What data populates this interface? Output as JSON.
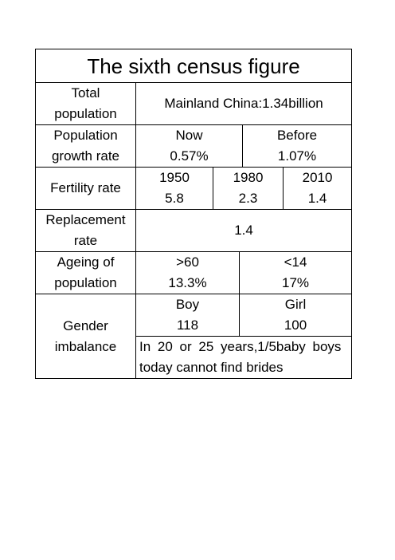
{
  "title": "The sixth census figure",
  "total_population": {
    "label": [
      "Total",
      "population"
    ],
    "value": "Mainland China:1.34billion"
  },
  "growth_rate": {
    "label": [
      "Population",
      "growth rate"
    ],
    "now": {
      "label": "Now",
      "value": "0.57%"
    },
    "before": {
      "label": "Before",
      "value": "1.07%"
    }
  },
  "fertility_rate": {
    "label": "Fertility rate",
    "entries": [
      {
        "year": "1950",
        "value": "5.8"
      },
      {
        "year": "1980",
        "value": "2.3"
      },
      {
        "year": "2010",
        "value": "1.4"
      }
    ]
  },
  "replacement_rate": {
    "label": [
      "Replacement",
      "rate"
    ],
    "value": "1.4"
  },
  "ageing": {
    "label": [
      "Ageing of",
      "population"
    ],
    "over60": {
      "label": ">60",
      "value": "13.3%"
    },
    "under14": {
      "label": "<14",
      "value": "17%"
    }
  },
  "gender": {
    "label": [
      "Gender",
      "imbalance"
    ],
    "boy": {
      "label": "Boy",
      "value": "118"
    },
    "girl": {
      "label": "Girl",
      "value": "100"
    },
    "note": [
      "In 20 or 25 years,1/5baby boys",
      "today cannot find brides"
    ]
  }
}
